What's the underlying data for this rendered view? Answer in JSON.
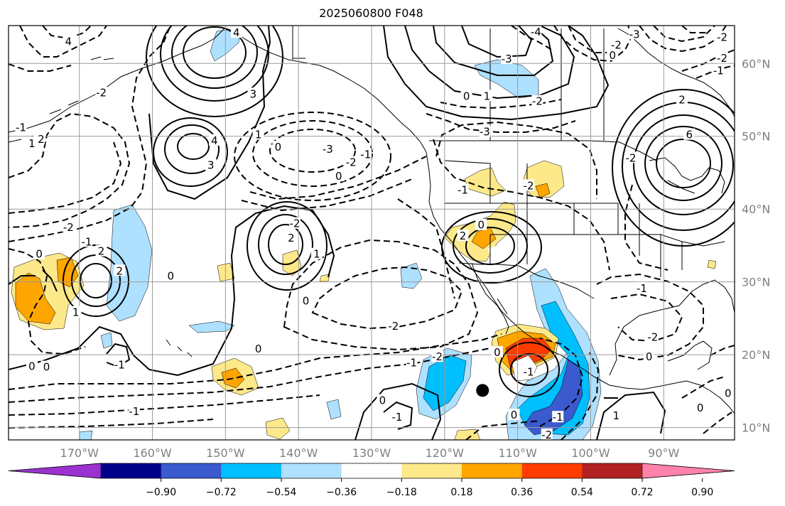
{
  "title": "2025060800 F048",
  "lat_labels": [
    "60°N",
    "50°N",
    "40°N",
    "30°N",
    "20°N",
    "10°N"
  ],
  "lat_values": [
    60,
    50,
    40,
    30,
    20,
    10
  ],
  "lon_labels": [
    "170°W",
    "160°W",
    "150°W",
    "140°W",
    "130°W",
    "120°W",
    "110°W",
    "100°W",
    "90°W"
  ],
  "lon_values": [
    -170,
    -160,
    -150,
    -140,
    -130,
    -120,
    -110,
    -100,
    -90
  ],
  "extent": {
    "lon_min": -179.7,
    "lon_max": -80.3,
    "lat_min": 8.3,
    "lat_max": 65.2
  },
  "colorbar": {
    "ticks": [
      "−0.90",
      "−0.72",
      "−0.54",
      "−0.36",
      "−0.18",
      "0.18",
      "0.36",
      "0.54",
      "0.72",
      "0.90"
    ],
    "colors": [
      "#9b32d0",
      "#00008b",
      "#3a5acd",
      "#00bfff",
      "#aee0ff",
      "#ffffff",
      "#fde98a",
      "#ffa500",
      "#ff3c00",
      "#b22222",
      "#ff82aa"
    ]
  },
  "marker": {
    "lon": -114.8,
    "lat": 15.1,
    "color": "#000000"
  },
  "contour_labels": [
    {
      "t": "4",
      "lon": -148.5,
      "lat": 64.2
    },
    {
      "t": "3",
      "lon": -146.2,
      "lat": 55.8
    },
    {
      "t": "4",
      "lon": -151.5,
      "lat": 49.4
    },
    {
      "t": "3",
      "lon": -152.0,
      "lat": 46.0
    },
    {
      "t": "1",
      "lon": -145.5,
      "lat": 50.2
    },
    {
      "t": "0",
      "lon": -142.8,
      "lat": 48.5
    },
    {
      "t": "-3",
      "lon": -136.0,
      "lat": 48.2
    },
    {
      "t": "-2",
      "lon": -132.8,
      "lat": 46.4
    },
    {
      "t": "-1",
      "lon": -130.8,
      "lat": 47.5
    },
    {
      "t": "0",
      "lon": -134.5,
      "lat": 44.5
    },
    {
      "t": "-2",
      "lon": -167.0,
      "lat": 56.0
    },
    {
      "t": "-1",
      "lon": -178.0,
      "lat": 51.2
    },
    {
      "t": "-2",
      "lon": -175.5,
      "lat": 49.6
    },
    {
      "t": "4",
      "lon": -171.5,
      "lat": 63.0
    },
    {
      "t": "1",
      "lon": -176.5,
      "lat": 49.0
    },
    {
      "t": "-2",
      "lon": -171.5,
      "lat": 37.5
    },
    {
      "t": "-1",
      "lon": -169.0,
      "lat": 35.5
    },
    {
      "t": "0",
      "lon": -175.5,
      "lat": 33.8
    },
    {
      "t": "2",
      "lon": -167.0,
      "lat": 34.2
    },
    {
      "t": "2",
      "lon": -164.5,
      "lat": 31.5
    },
    {
      "t": "1",
      "lon": -170.5,
      "lat": 25.8
    },
    {
      "t": "0",
      "lon": -157.5,
      "lat": 30.8
    },
    {
      "t": "-2",
      "lon": -140.5,
      "lat": 38.0
    },
    {
      "t": "2",
      "lon": -141.0,
      "lat": 36.0
    },
    {
      "t": "1",
      "lon": -137.5,
      "lat": 33.8
    },
    {
      "t": "0",
      "lon": -139.0,
      "lat": 27.4
    },
    {
      "t": "0",
      "lon": -176.5,
      "lat": 18.4
    },
    {
      "t": "0",
      "lon": -174.5,
      "lat": 18.3
    },
    {
      "t": "-1",
      "lon": -164.5,
      "lat": 18.6
    },
    {
      "t": "0",
      "lon": -145.5,
      "lat": 20.8
    },
    {
      "t": "-1",
      "lon": -162.5,
      "lat": 12.2
    },
    {
      "t": "0",
      "lon": -128.5,
      "lat": 13.7
    },
    {
      "t": "-1",
      "lon": -126.5,
      "lat": 11.4
    },
    {
      "t": "-2",
      "lon": -127.0,
      "lat": 23.9
    },
    {
      "t": "-2",
      "lon": -121.0,
      "lat": 19.7
    },
    {
      "t": "-1",
      "lon": -124.5,
      "lat": 18.9
    },
    {
      "t": "0",
      "lon": -112.8,
      "lat": 20.3
    },
    {
      "t": "-1",
      "lon": -108.5,
      "lat": 17.6
    },
    {
      "t": "0",
      "lon": -110.5,
      "lat": 11.7
    },
    {
      "t": "-1",
      "lon": -104.5,
      "lat": 11.4
    },
    {
      "t": "-2",
      "lon": -106.0,
      "lat": 9.0
    },
    {
      "t": "1",
      "lon": -96.5,
      "lat": 11.6
    },
    {
      "t": "0",
      "lon": -85.0,
      "lat": 12.7
    },
    {
      "t": "0",
      "lon": -81.2,
      "lat": 14.7
    },
    {
      "t": "0",
      "lon": -92.0,
      "lat": 19.7
    },
    {
      "t": "-2",
      "lon": -91.5,
      "lat": 22.4
    },
    {
      "t": "-1",
      "lon": -93.0,
      "lat": 29.1
    },
    {
      "t": "2",
      "lon": -117.5,
      "lat": 36.3
    },
    {
      "t": "0",
      "lon": -115.0,
      "lat": 37.8
    },
    {
      "t": "-1",
      "lon": -117.5,
      "lat": 42.6
    },
    {
      "t": "-2",
      "lon": -108.5,
      "lat": 43.2
    },
    {
      "t": "-3",
      "lon": -114.5,
      "lat": 50.6
    },
    {
      "t": "-3",
      "lon": -111.5,
      "lat": 60.6
    },
    {
      "t": "-4",
      "lon": -107.5,
      "lat": 64.3
    },
    {
      "t": "0",
      "lon": -117.0,
      "lat": 55.5
    },
    {
      "t": "1",
      "lon": -114.2,
      "lat": 55.5
    },
    {
      "t": "-2",
      "lon": -107.3,
      "lat": 54.8
    },
    {
      "t": "-3",
      "lon": -94.0,
      "lat": 64.0
    },
    {
      "t": "-2",
      "lon": -96.5,
      "lat": 62.5
    },
    {
      "t": "0",
      "lon": -97.0,
      "lat": 61.1
    },
    {
      "t": "-2",
      "lon": -82.0,
      "lat": 60.7
    },
    {
      "t": "-1",
      "lon": -82.5,
      "lat": 59.0
    },
    {
      "t": "-2",
      "lon": -82.0,
      "lat": 63.6
    },
    {
      "t": "2",
      "lon": -87.5,
      "lat": 55.0
    },
    {
      "t": "6",
      "lon": -86.5,
      "lat": 50.2
    },
    {
      "t": "-2",
      "lon": -94.5,
      "lat": 47.0
    }
  ]
}
